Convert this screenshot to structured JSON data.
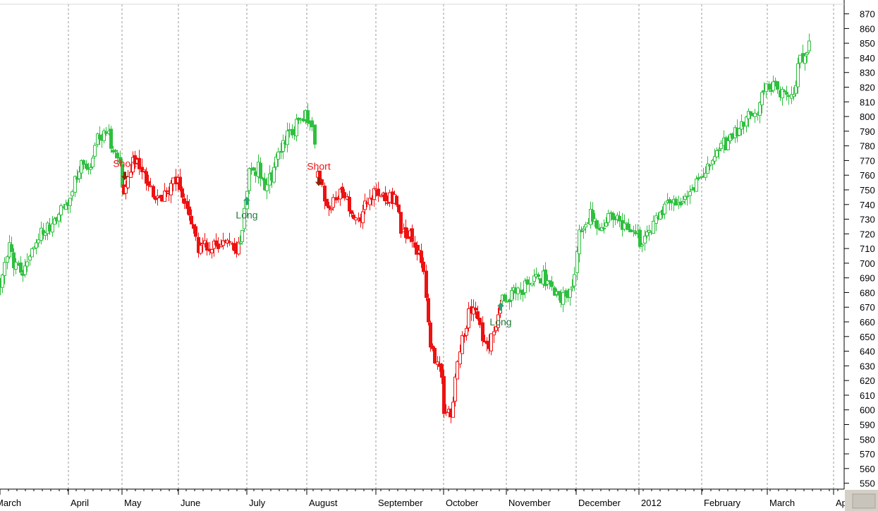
{
  "chart_data": {
    "type": "candlestick",
    "header": "",
    "x_months": [
      "March",
      "April",
      "May",
      "June",
      "July",
      "August",
      "September",
      "October",
      "November",
      "December",
      "2012",
      "February",
      "March",
      "Apr"
    ],
    "y_ticks": [
      550,
      560,
      570,
      580,
      590,
      600,
      610,
      620,
      630,
      640,
      650,
      660,
      670,
      680,
      690,
      700,
      710,
      720,
      730,
      740,
      750,
      760,
      770,
      780,
      790,
      800,
      810,
      820,
      830,
      840,
      850,
      860,
      870
    ],
    "ylim": [
      545,
      878
    ],
    "grid": "vertical dashed at month starts",
    "colors": {
      "up_trend": "#2fbf3f",
      "down_trend": "#ee1111",
      "signal_long": "#2e9e7a",
      "signal_short": "#8b2500",
      "short_label": "#ee1111",
      "long_label": "#1f7a3a"
    },
    "segments": [
      {
        "trend": "up",
        "start": 0,
        "points": [
          [
            0,
            685
          ],
          [
            12,
            712
          ],
          [
            20,
            700
          ],
          [
            35,
            695
          ],
          [
            55,
            720
          ],
          [
            75,
            728
          ],
          [
            95,
            740
          ],
          [
            105,
            758
          ],
          [
            115,
            768
          ],
          [
            128,
            765
          ],
          [
            140,
            788
          ],
          [
            155,
            785
          ],
          [
            165,
            775
          ],
          [
            175,
            750
          ]
        ]
      },
      {
        "trend": "down",
        "points": [
          [
            175,
            752
          ],
          [
            190,
            770
          ],
          [
            205,
            760
          ],
          [
            220,
            745
          ],
          [
            235,
            745
          ],
          [
            250,
            760
          ],
          [
            260,
            740
          ],
          [
            270,
            725
          ],
          [
            280,
            712
          ],
          [
            300,
            712
          ],
          [
            320,
            712
          ],
          [
            340,
            710
          ]
        ]
      },
      {
        "trend": "up",
        "points": [
          [
            340,
            712
          ],
          [
            352,
            762
          ],
          [
            365,
            765
          ],
          [
            378,
            752
          ],
          [
            395,
            772
          ],
          [
            410,
            790
          ],
          [
            425,
            795
          ],
          [
            435,
            802
          ],
          [
            448,
            778
          ]
        ]
      },
      {
        "trend": "down",
        "points": [
          [
            450,
            760
          ],
          [
            465,
            735
          ],
          [
            480,
            750
          ],
          [
            495,
            738
          ],
          [
            510,
            728
          ],
          [
            520,
            742
          ],
          [
            535,
            748
          ],
          [
            550,
            742
          ],
          [
            560,
            748
          ],
          [
            570,
            720
          ],
          [
            585,
            718
          ],
          [
            600,
            695
          ],
          [
            610,
            640
          ],
          [
            625,
            630
          ],
          [
            630,
            595
          ],
          [
            640,
            598
          ],
          [
            650,
            640
          ],
          [
            665,
            665
          ],
          [
            675,
            665
          ],
          [
            685,
            648
          ],
          [
            695,
            645
          ],
          [
            710,
            672
          ]
        ]
      },
      {
        "trend": "up",
        "points": [
          [
            712,
            675
          ],
          [
            725,
            678
          ],
          [
            740,
            682
          ],
          [
            755,
            688
          ],
          [
            770,
            690
          ],
          [
            785,
            678
          ],
          [
            800,
            678
          ],
          [
            815,
            688
          ],
          [
            820,
            718
          ],
          [
            835,
            733
          ],
          [
            850,
            725
          ],
          [
            865,
            730
          ],
          [
            880,
            728
          ],
          [
            895,
            720
          ],
          [
            910,
            715
          ],
          [
            925,
            725
          ],
          [
            940,
            738
          ],
          [
            955,
            742
          ],
          [
            970,
            742
          ],
          [
            985,
            752
          ],
          [
            1000,
            762
          ],
          [
            1015,
            780
          ],
          [
            1030,
            782
          ],
          [
            1045,
            790
          ],
          [
            1060,
            800
          ],
          [
            1075,
            805
          ],
          [
            1085,
            820
          ],
          [
            1100,
            820
          ],
          [
            1115,
            815
          ],
          [
            1125,
            818
          ],
          [
            1135,
            840
          ],
          [
            1148,
            848
          ]
        ]
      }
    ],
    "annotations": [
      {
        "label": "Short",
        "kind": "short",
        "x": 177,
        "label_y": 768,
        "arrow_y": 758
      },
      {
        "label": "Long",
        "kind": "long",
        "x": 350,
        "label_y": 733,
        "arrow_y": 744
      },
      {
        "label": "Short",
        "kind": "short",
        "x": 452,
        "label_y": 766,
        "arrow_y": 754
      },
      {
        "label": "Long",
        "kind": "long",
        "x": 710,
        "label_y": 660,
        "arrow_y": 672
      }
    ]
  }
}
